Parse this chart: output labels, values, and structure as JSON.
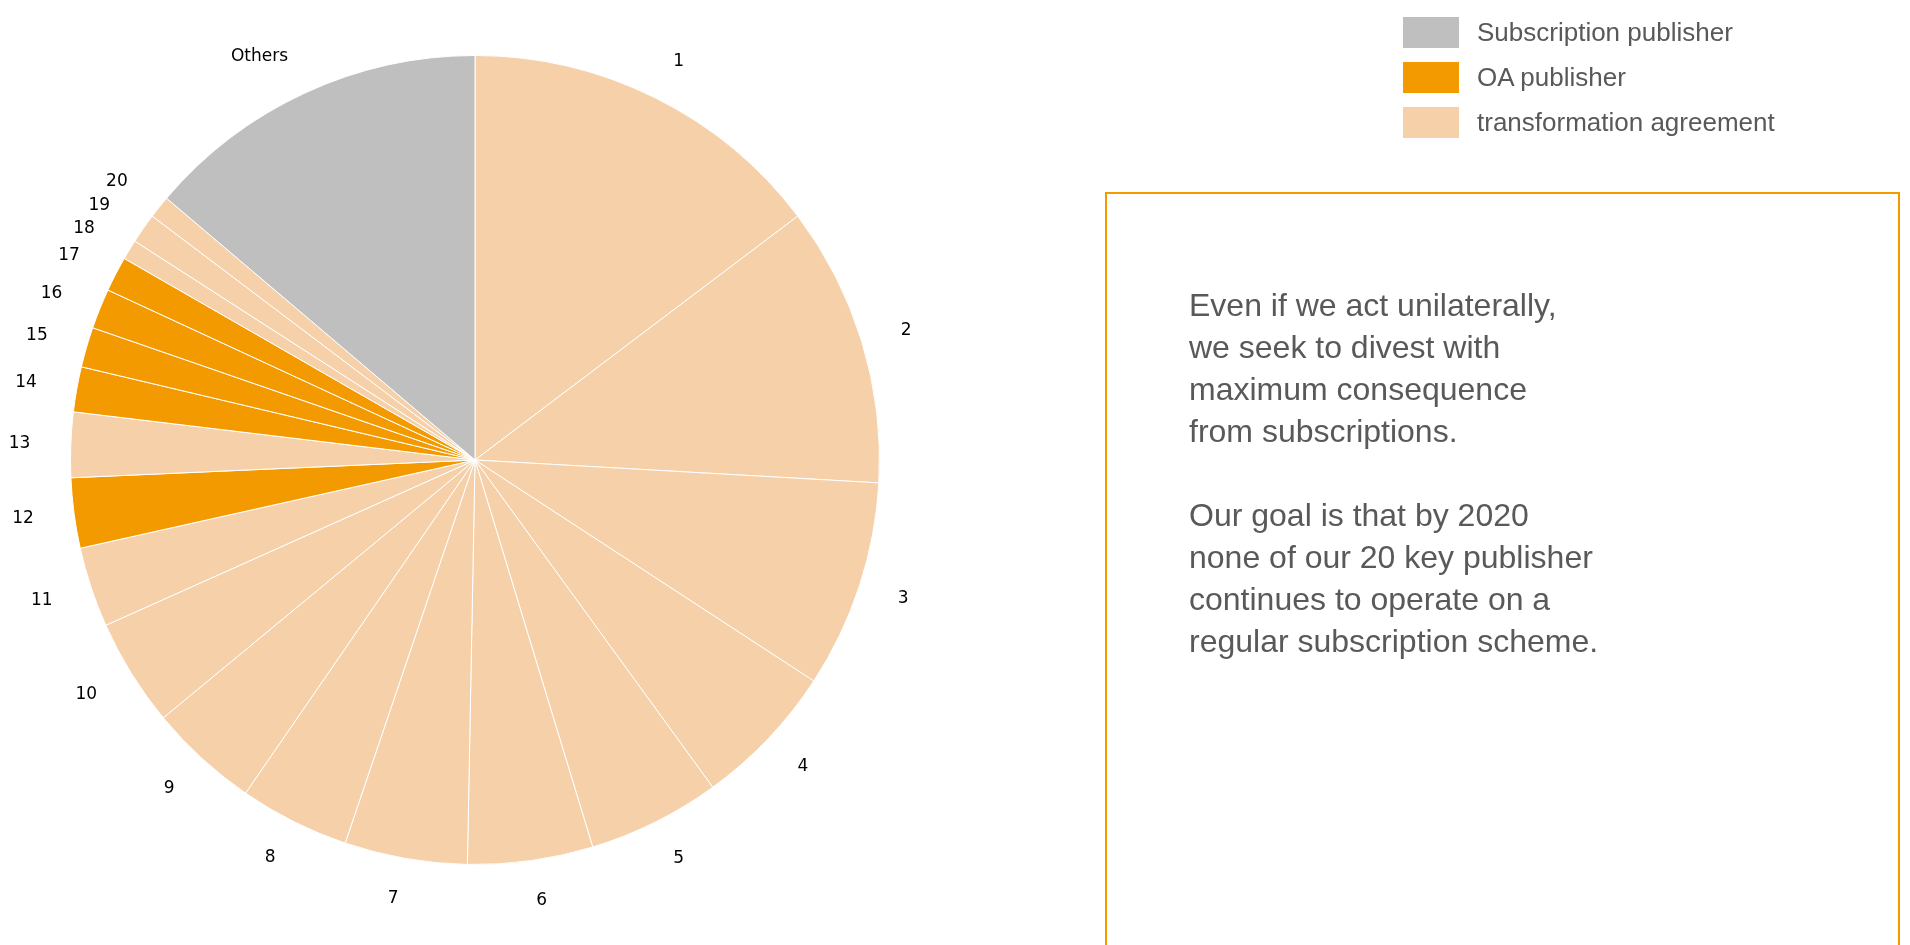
{
  "chart_data": {
    "type": "pie",
    "categories": [
      "1",
      "2",
      "3",
      "4",
      "5",
      "6",
      "7",
      "8",
      "9",
      "10",
      "11",
      "12",
      "13",
      "14",
      "15",
      "16",
      "17",
      "18",
      "19",
      "20",
      "Others"
    ],
    "values": [
      14.7,
      11.2,
      8.3,
      5.8,
      5.3,
      5.0,
      4.9,
      4.4,
      4.4,
      4.3,
      3.2,
      2.8,
      2.6,
      1.8,
      1.6,
      1.6,
      1.4,
      0.8,
      1.2,
      0.9,
      13.8
    ],
    "colors": [
      "#f5d0a9",
      "#f5d0a9",
      "#f5d0a9",
      "#f5d0a9",
      "#f5d0a9",
      "#f5d0a9",
      "#f5d0a9",
      "#f5d0a9",
      "#f5d0a9",
      "#f5d0a9",
      "#f5d0a9",
      "#f39a00",
      "#f5d0a9",
      "#f39a00",
      "#f39a00",
      "#f39a00",
      "#f39a00",
      "#f5d0a9",
      "#f5d0a9",
      "#f5d0a9",
      "#bfbfbf"
    ],
    "annotations": [
      "Subscription publisher",
      "OA publisher",
      "transformation agreement",
      "Even if we act unilaterally,\nwe seek to divest with\nmaximum consequence\nfrom subscriptions.",
      "Our goal is that by 2020\nnone of our 20 key publisher\ncontinues to operate on a\nregular subscription scheme."
    ]
  }
}
